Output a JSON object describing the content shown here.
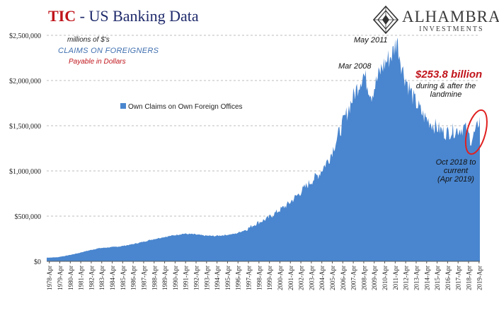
{
  "header": {
    "title_bold": "TIC",
    "title_rest": " - US Banking Data",
    "logo_name": "ALHAMBRA",
    "logo_sub": "INVESTMENTS"
  },
  "notes": {
    "units": "millions of $'s",
    "claims": "CLAIMS ON FOREIGNERS",
    "payable": "Payable in Dollars",
    "mar2008": "Mar 2008",
    "may2011": "May 2011",
    "big_value": "$253.8 billion",
    "during1": "during & after the",
    "during2": "landmine",
    "oct1": "Oct 2018 to",
    "oct2": "current",
    "oct3": "(Apr 2019)"
  },
  "colors": {
    "area": "#4a86cf",
    "title_red": "#c0141b",
    "title_navy": "#1f2a6b",
    "circle": "#e02020"
  },
  "chart_data": {
    "type": "area",
    "series_name": "Own Claims on Own Foreign Offices",
    "legend_position": "center-left",
    "grid": true,
    "ylim": [
      0,
      2500000
    ],
    "y_ticks": [
      0,
      500000,
      1000000,
      1500000,
      2000000,
      2500000
    ],
    "y_tick_labels": [
      "$0",
      "$500,000",
      "$1,000,000",
      "$1,500,000",
      "$2,000,000",
      "$2,500,000"
    ],
    "x_tick_labels": [
      "1978-Apr",
      "1979-Apr",
      "1980-Apr",
      "1981-Apr",
      "1982-Apr",
      "1983-Apr",
      "1984-Apr",
      "1985-Apr",
      "1986-Apr",
      "1987-Apr",
      "1988-Apr",
      "1989-Apr",
      "1990-Apr",
      "1991-Apr",
      "1992-Apr",
      "1993-Apr",
      "1994-Apr",
      "1995-Apr",
      "1996-Apr",
      "1997-Apr",
      "1998-Apr",
      "1999-Apr",
      "2000-Apr",
      "2001-Apr",
      "2002-Apr",
      "2003-Apr",
      "2004-Apr",
      "2005-Apr",
      "2006-Apr",
      "2007-Apr",
      "2008-Apr",
      "2009-Apr",
      "2010-Apr",
      "2011-Apr",
      "2012-Apr",
      "2013-Apr",
      "2014-Apr",
      "2015-Apr",
      "2016-Apr",
      "2017-Apr",
      "2018-Apr",
      "2019-Apr"
    ],
    "x_range": [
      1978.0,
      2019.33
    ],
    "points": [
      [
        1978.0,
        40000
      ],
      [
        1979.0,
        45000
      ],
      [
        1980.0,
        65000
      ],
      [
        1981.0,
        90000
      ],
      [
        1982.0,
        120000
      ],
      [
        1983.0,
        145000
      ],
      [
        1984.0,
        155000
      ],
      [
        1985.0,
        165000
      ],
      [
        1986.0,
        185000
      ],
      [
        1987.0,
        210000
      ],
      [
        1988.0,
        240000
      ],
      [
        1989.0,
        265000
      ],
      [
        1990.0,
        285000
      ],
      [
        1991.0,
        305000
      ],
      [
        1992.0,
        300000
      ],
      [
        1993.0,
        285000
      ],
      [
        1994.0,
        280000
      ],
      [
        1995.0,
        290000
      ],
      [
        1996.0,
        305000
      ],
      [
        1997.0,
        350000
      ],
      [
        1998.0,
        420000
      ],
      [
        1999.0,
        470000
      ],
      [
        2000.0,
        550000
      ],
      [
        2001.0,
        630000
      ],
      [
        2002.0,
        740000
      ],
      [
        2003.0,
        860000
      ],
      [
        2004.0,
        970000
      ],
      [
        2005.0,
        1150000
      ],
      [
        2006.0,
        1450000
      ],
      [
        2007.0,
        1750000
      ],
      [
        2008.2,
        2080000
      ],
      [
        2009.0,
        1850000
      ],
      [
        2010.0,
        2150000
      ],
      [
        2011.0,
        2300000
      ],
      [
        2011.4,
        2450000
      ],
      [
        2012.0,
        2100000
      ],
      [
        2013.0,
        1800000
      ],
      [
        2014.0,
        1600000
      ],
      [
        2015.0,
        1500000
      ],
      [
        2016.0,
        1420000
      ],
      [
        2017.0,
        1450000
      ],
      [
        2017.9,
        1480000
      ],
      [
        2018.5,
        1340000
      ],
      [
        2019.0,
        1450000
      ],
      [
        2019.33,
        1600000
      ]
    ],
    "highlight": {
      "from": 2018.5,
      "to": 2019.33
    }
  }
}
